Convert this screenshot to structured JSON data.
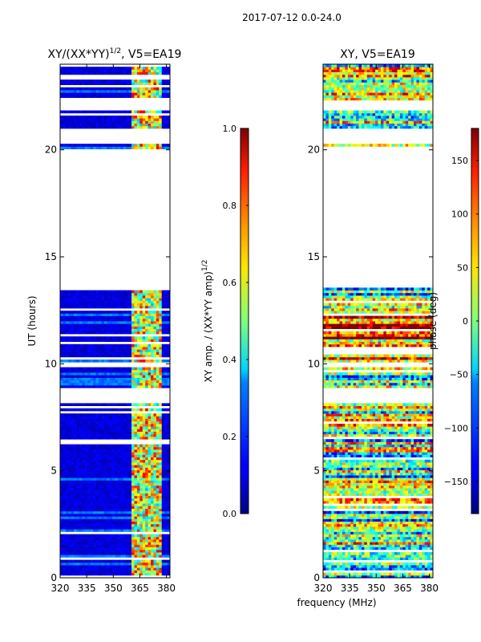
{
  "figure_title": "2017-07-12 0.0-24.0",
  "chart_data": [
    {
      "type": "heatmap",
      "title_base": "XY/(XX*YY)",
      "title_exponent": "1/2",
      "title_suffix": ", V5=EA19",
      "ylabel": "UT (hours)",
      "xlabel": "",
      "xlim": [
        320,
        382
      ],
      "ylim": [
        0,
        24
      ],
      "xticks": [
        320,
        335,
        350,
        365,
        380
      ],
      "yticks": [
        0,
        5,
        10,
        15,
        20
      ],
      "colormap": "jet",
      "colorbar": {
        "label_base": "XY amp. / (XX*YY amp)",
        "label_exponent": "1/2",
        "range": [
          0.0,
          1.0
        ],
        "ticks": [
          "0.0",
          "0.2",
          "0.4",
          "0.6",
          "0.8",
          "1.0"
        ]
      },
      "data_gaps_hours": [
        [
          8.2,
          8.9
        ],
        [
          9.9,
          10.1
        ],
        [
          13.6,
          20.0
        ],
        [
          20.3,
          21.0
        ],
        [
          21.8,
          22.3
        ]
      ],
      "bright_freq_band_mhz": [
        360,
        378
      ]
    },
    {
      "type": "heatmap",
      "title": "XY, V5=EA19",
      "ylabel": "",
      "xlabel": "frequency (MHz)",
      "xlim": [
        320,
        382
      ],
      "ylim": [
        0,
        24
      ],
      "xticks": [
        320,
        335,
        350,
        365,
        380
      ],
      "yticks": [
        0,
        5,
        10,
        15,
        20
      ],
      "colormap": "jet",
      "colorbar": {
        "label": "phase (deg)",
        "range": [
          -180,
          180
        ],
        "ticks": [
          "150",
          "100",
          "50",
          "0",
          "−50",
          "−100",
          "−150"
        ]
      },
      "data_gaps_hours": [
        [
          8.2,
          8.9
        ],
        [
          9.9,
          10.1
        ],
        [
          13.6,
          20.0
        ],
        [
          20.3,
          21.0
        ],
        [
          21.8,
          22.3
        ]
      ]
    }
  ]
}
